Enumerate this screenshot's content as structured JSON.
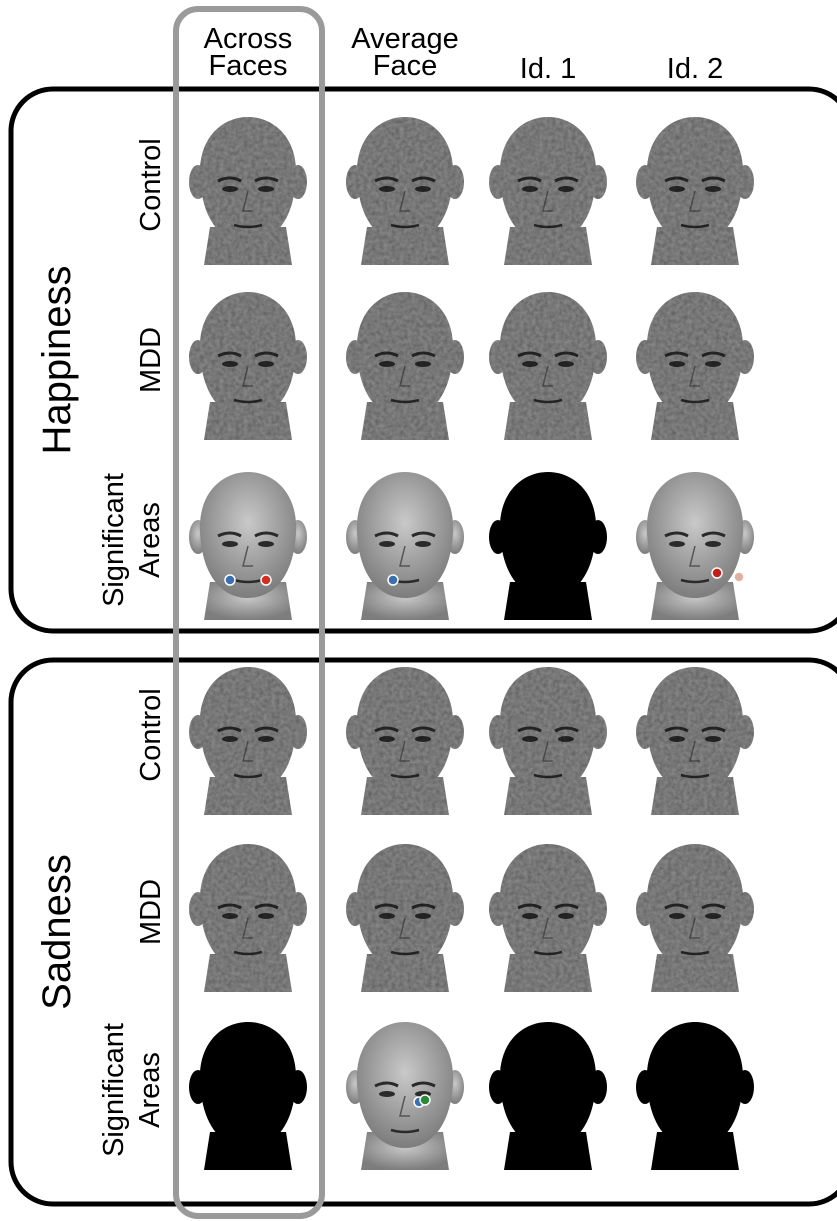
{
  "columns": [
    {
      "lines": [
        "Across",
        "Faces"
      ]
    },
    {
      "lines": [
        "Average",
        "Face"
      ]
    },
    {
      "lines": [
        "Id. 1"
      ]
    },
    {
      "lines": [
        "Id. 2"
      ]
    }
  ],
  "groups": [
    {
      "label": "Happiness",
      "rows": [
        {
          "lines": [
            "Control"
          ]
        },
        {
          "lines": [
            "MDD"
          ]
        },
        {
          "lines": [
            "Significant",
            "Areas"
          ]
        }
      ]
    },
    {
      "label": "Sadness",
      "rows": [
        {
          "lines": [
            "Control"
          ]
        },
        {
          "lines": [
            "MDD"
          ]
        },
        {
          "lines": [
            "Significant",
            "Areas"
          ]
        }
      ]
    }
  ]
}
